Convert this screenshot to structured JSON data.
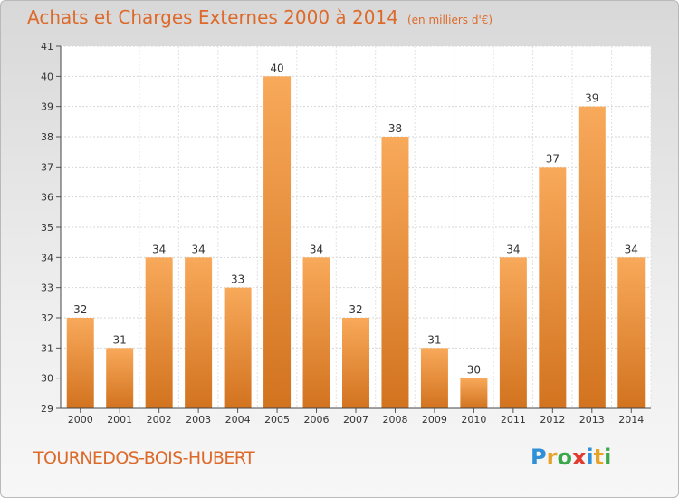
{
  "title": "Achats et Charges Externes 2000 à 2014",
  "subtitle": "(en milliers d'€)",
  "place": "TOURNEDOS-BOIS-HUBERT",
  "logo": {
    "letters": [
      "P",
      "r",
      "o",
      "x",
      "i",
      "t",
      "i"
    ],
    "colors": [
      "#2f8fd8",
      "#e8a225",
      "#3aa84a",
      "#e23a2f",
      "#2f8fd8",
      "#e8a225",
      "#3aa84a"
    ]
  },
  "colors": {
    "bar_light": "#f8a95a",
    "bar_dark": "#d2731f",
    "text": "#dd6a2a",
    "axis": "#333333"
  },
  "chart_data": {
    "type": "bar",
    "categories": [
      "2000",
      "2001",
      "2002",
      "2003",
      "2004",
      "2005",
      "2006",
      "2007",
      "2008",
      "2009",
      "2010",
      "2011",
      "2012",
      "2013",
      "2014"
    ],
    "values": [
      32,
      31,
      34,
      34,
      33,
      40,
      34,
      32,
      38,
      31,
      30,
      34,
      37,
      39,
      34
    ],
    "ylim": [
      29,
      41
    ],
    "yticks": [
      29,
      30,
      31,
      32,
      33,
      34,
      35,
      36,
      37,
      38,
      39,
      40,
      41
    ],
    "grid": true
  }
}
